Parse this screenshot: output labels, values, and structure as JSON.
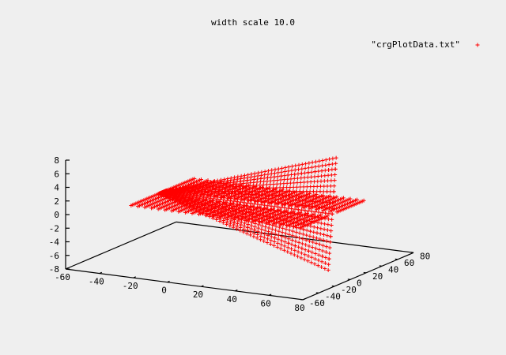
{
  "chart_data": {
    "type": "scatter",
    "title": "width scale 10.0",
    "legend": {
      "label": "\"crgPlotData.txt\"",
      "position": "top-right",
      "marker": "+"
    },
    "colors": {
      "points": "#ff0000",
      "axes": "#000000",
      "background": "#efefef"
    },
    "x_axis": {
      "range": [
        -60,
        80
      ],
      "ticks": [
        -60,
        -40,
        -20,
        0,
        20,
        40,
        60,
        80
      ],
      "tick_labels": [
        "-60",
        "-40",
        "-20",
        "0",
        "20",
        "40",
        "60",
        "80"
      ]
    },
    "y_axis": {
      "range": [
        -60,
        80
      ],
      "ticks": [
        -60,
        -40,
        -20,
        0,
        20,
        40,
        60,
        80
      ],
      "tick_labels": [
        "-60",
        "-40",
        "-20",
        "0",
        "20",
        "40",
        "60",
        "80"
      ]
    },
    "z_axis": {
      "range": [
        -8,
        8
      ],
      "ticks": [
        -8,
        -6,
        -4,
        -2,
        0,
        2,
        4,
        6,
        8
      ],
      "tick_labels": [
        "-8",
        "-6",
        "-4",
        "-2",
        "0",
        "2",
        "4",
        "6",
        "8"
      ]
    },
    "surface": {
      "x_range": [
        -40,
        60
      ],
      "y_range": [
        -20,
        60
      ],
      "ramp": {
        "y_center": 20,
        "half_width": 5,
        "z_min": -8,
        "z_max": 8,
        "max_at_x": 60
      }
    }
  }
}
